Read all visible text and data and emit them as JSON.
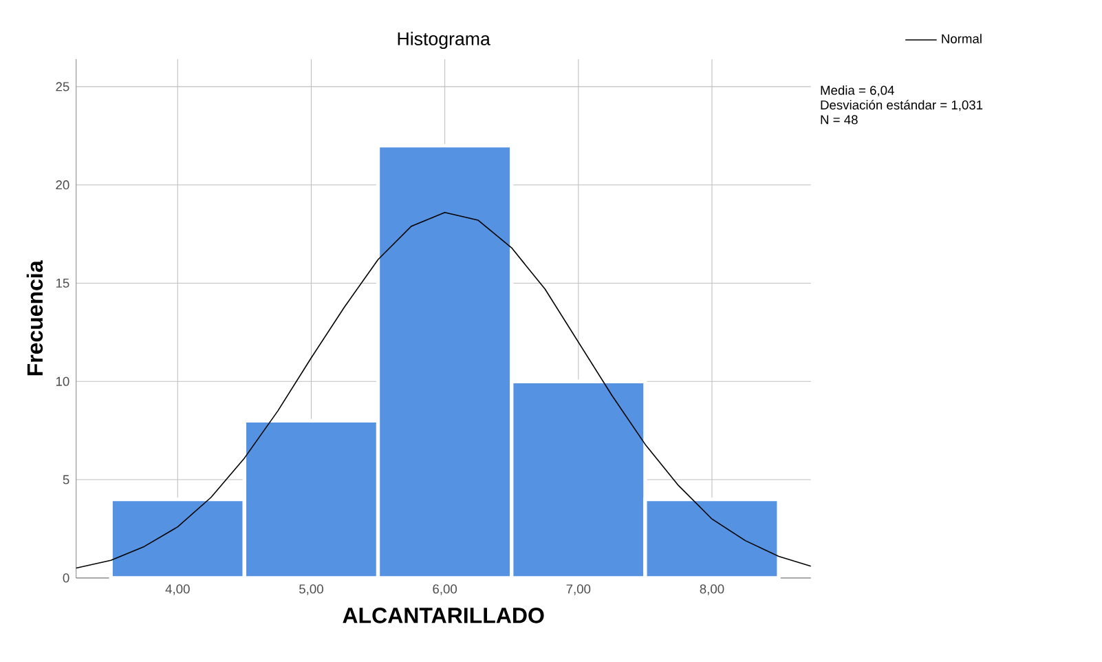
{
  "chart_data": {
    "type": "histogram",
    "title": "Histograma",
    "xlabel": "ALCANTARILLADO",
    "ylabel": "Frecuencia",
    "bins": [
      3.5,
      4.5,
      5.5,
      6.5,
      7.5,
      8.5
    ],
    "values": [
      4,
      8,
      22,
      10,
      4
    ],
    "color": "#5592e2",
    "series": [
      {
        "type": "line",
        "name": "Normal",
        "color": "#000000",
        "x": [
          3.24,
          3.5,
          3.75,
          4.0,
          4.25,
          4.5,
          4.75,
          5.0,
          5.25,
          5.5,
          5.75,
          6.0,
          6.25,
          6.5,
          6.75,
          7.0,
          7.25,
          7.5,
          7.75,
          8.0,
          8.25,
          8.5,
          8.74
        ],
        "values": [
          0.5,
          0.9,
          1.6,
          2.6,
          4.1,
          6.1,
          8.5,
          11.2,
          13.8,
          16.2,
          17.9,
          18.6,
          18.2,
          16.8,
          14.7,
          12.0,
          9.3,
          6.8,
          4.7,
          3.0,
          1.9,
          1.1,
          0.6
        ]
      }
    ],
    "xlim": [
      3.24,
      8.74
    ],
    "ylim": [
      0,
      26.4
    ],
    "xticks": [
      {
        "value": 4,
        "label": "4,00"
      },
      {
        "value": 5,
        "label": "5,00"
      },
      {
        "value": 6,
        "label": "6,00"
      },
      {
        "value": 7,
        "label": "7,00"
      },
      {
        "value": 8,
        "label": "8,00"
      }
    ],
    "yticks": [
      0,
      5,
      10,
      15,
      20,
      25
    ],
    "grid": true,
    "legend": "top right",
    "annotations": [
      "Media = 6,04",
      "Desviación estándar = 1,031",
      "N = 48"
    ]
  }
}
